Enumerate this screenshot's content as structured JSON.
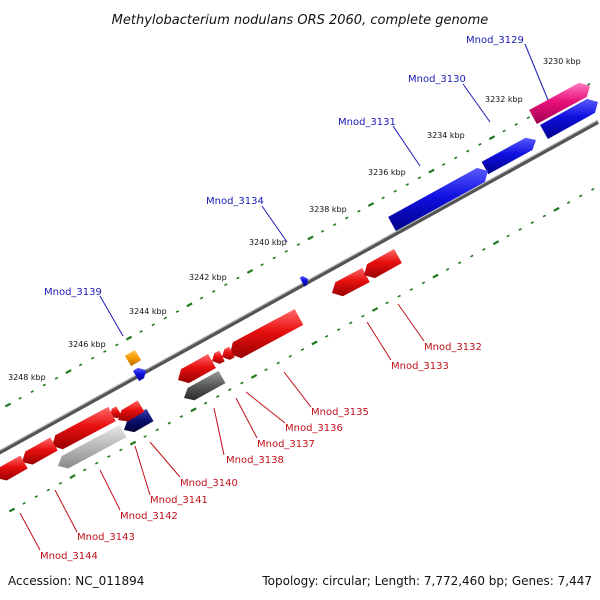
{
  "title": "Methylobacterium nodulans ORS 2060, complete genome",
  "footer": {
    "accession": "Accession: NC_011894",
    "summary": "Topology: circular; Length: 7,772,460 bp; Genes: 7,447"
  },
  "ticks": [
    "3230 kbp",
    "3232 kbp",
    "3234 kbp",
    "3236 kbp",
    "3238 kbp",
    "3240 kbp",
    "3242 kbp",
    "3244 kbp",
    "3246 kbp",
    "3248 kbp"
  ],
  "genes_forward": [
    "Mnod_3129",
    "Mnod_3130",
    "Mnod_3131",
    "Mnod_3134",
    "Mnod_3139"
  ],
  "genes_reverse": [
    "Mnod_3132",
    "Mnod_3133",
    "Mnod_3135",
    "Mnod_3136",
    "Mnod_3137",
    "Mnod_3138",
    "Mnod_3140",
    "Mnod_3141",
    "Mnod_3142",
    "Mnod_3143",
    "Mnod_3144"
  ],
  "colors": {
    "forward_gene": "#1010e0",
    "reverse_gene": "#e81010",
    "highlight_pink": "#e8107a",
    "orange": "#f59a00",
    "dark_gray": "#5a5a5a",
    "light_gray": "#b8b8b8",
    "navy": "#0a1070",
    "backbone": "#777777",
    "dots": "#1e7a1e"
  }
}
